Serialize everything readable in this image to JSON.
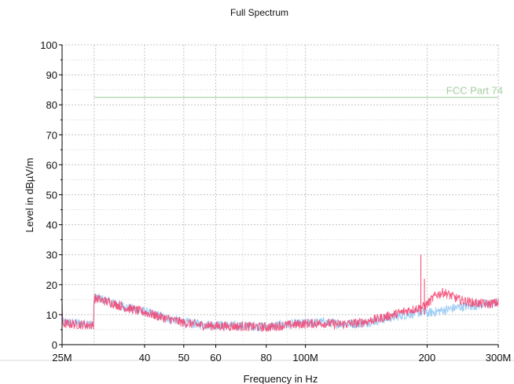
{
  "chart_data": {
    "type": "line",
    "title": "Full Spectrum",
    "xlabel": "Frequency in Hz",
    "ylabel": "Level in dBµV/m",
    "x_scale": "log",
    "xlim": [
      25000000,
      300000000
    ],
    "ylim": [
      0,
      100
    ],
    "grid": true,
    "x_tick_values": [
      25000000,
      40000000,
      50000000,
      60000000,
      80000000,
      100000000,
      200000000,
      300000000
    ],
    "x_tick_labels": [
      "25M",
      "40",
      "50",
      "60",
      "80",
      "100M",
      "200",
      "300M"
    ],
    "y_tick_values": [
      0,
      10,
      20,
      30,
      40,
      50,
      60,
      70,
      80,
      90,
      100
    ],
    "y_tick_labels": [
      "0",
      "10",
      "20",
      "30",
      "40",
      "50",
      "60",
      "70",
      "80",
      "90",
      "100"
    ],
    "limit_line": {
      "label": "FCC Part 74",
      "value": 82.5,
      "x_start": 30000000,
      "x_end": 300000000,
      "color": "#a6d0a2"
    },
    "series": [
      {
        "color": "#94c8f4",
        "x": [
          25000000,
          27000000,
          29900000,
          30000000,
          33000000,
          36000000,
          40000000,
          45000000,
          50000000,
          55000000,
          60000000,
          70000000,
          80000000,
          90000000,
          100000000,
          110000000,
          120000000,
          135000000,
          150000000,
          165000000,
          180000000,
          195000000,
          200000000,
          210000000,
          220000000,
          240000000,
          260000000,
          280000000,
          300000000
        ],
        "values": [
          7.5,
          7.2,
          6.8,
          16.0,
          14.2,
          12.5,
          11.0,
          9.0,
          7.5,
          6.8,
          6.5,
          6.3,
          6.0,
          6.6,
          7.2,
          7.5,
          7.0,
          7.0,
          8.0,
          9.2,
          10.2,
          10.8,
          10.5,
          11.0,
          11.5,
          12.5,
          13.0,
          13.5,
          14.0
        ]
      },
      {
        "color": "#f4426e",
        "x": [
          25000000,
          27000000,
          29900000,
          30000000,
          33000000,
          36000000,
          40000000,
          45000000,
          50000000,
          55000000,
          60000000,
          70000000,
          80000000,
          90000000,
          100000000,
          110000000,
          120000000,
          135000000,
          150000000,
          165000000,
          180000000,
          195000000,
          200000000,
          210000000,
          220000000,
          240000000,
          260000000,
          280000000,
          300000000
        ],
        "values": [
          7.0,
          6.8,
          6.5,
          15.5,
          14.0,
          12.3,
          10.8,
          8.8,
          7.3,
          6.5,
          6.2,
          6.1,
          5.8,
          6.5,
          7.0,
          7.2,
          6.8,
          7.2,
          8.5,
          10.0,
          11.5,
          12.5,
          13.5,
          16.5,
          17.5,
          15.0,
          14.0,
          13.5,
          14.0
        ]
      }
    ],
    "spikes": [
      {
        "x": 193000000,
        "value": 30,
        "color": "#f4426e"
      },
      {
        "x": 197000000,
        "value": 22,
        "color": "#f4426e"
      }
    ]
  }
}
